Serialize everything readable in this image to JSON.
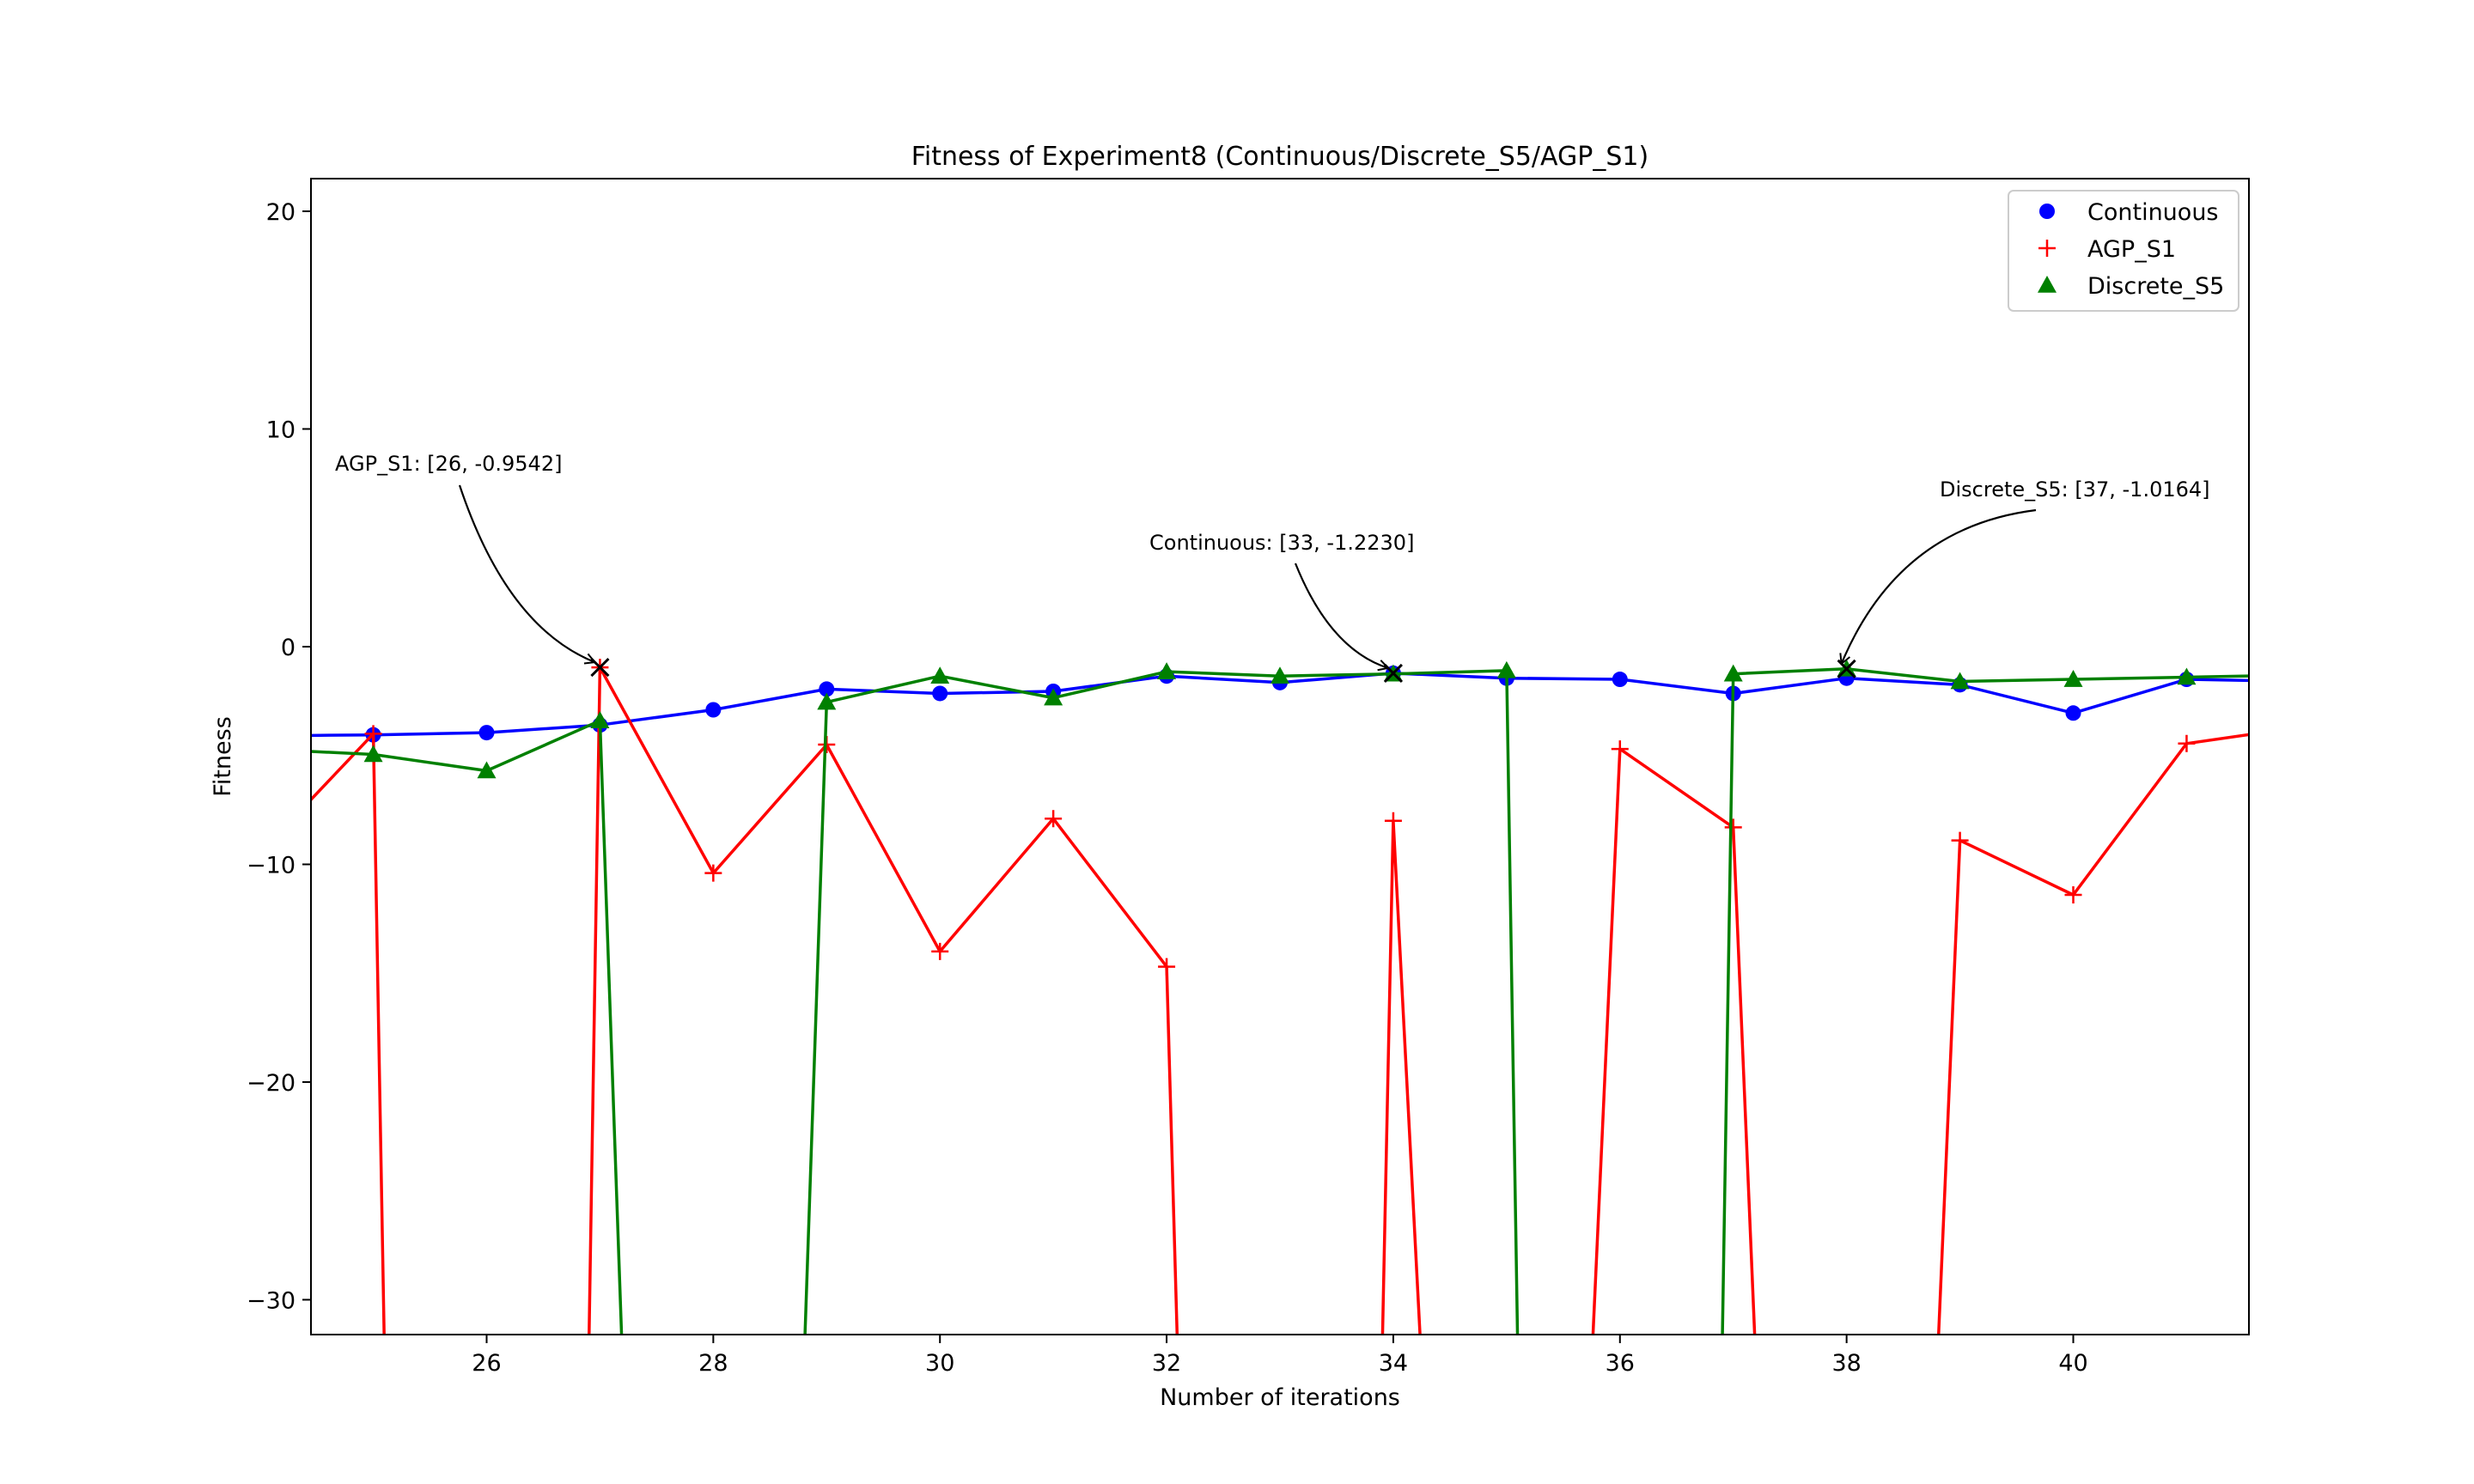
{
  "chart_data": {
    "type": "line",
    "title": "Fitness of Experiment8 (Continuous/Discrete_S5/AGP_S1)",
    "xlabel": "Number of iterations",
    "ylabel": "Fitness",
    "xlim": [
      24.45,
      41.55
    ],
    "ylim": [
      -31.6,
      21.5
    ],
    "xticks": [
      26,
      28,
      30,
      32,
      34,
      36,
      38,
      40
    ],
    "yticks": [
      20,
      10,
      0,
      -10,
      -20,
      -30
    ],
    "legend_position": "top-right",
    "grid": false,
    "series": [
      {
        "name": "Continuous",
        "color": "#0000ff",
        "marker": "circle",
        "x": [
          24,
          25,
          26,
          27,
          28,
          29,
          30,
          31,
          32,
          33,
          34,
          35,
          36,
          37,
          38,
          39,
          40,
          41,
          42
        ],
        "y": [
          -4.1,
          -4.05,
          -3.95,
          -3.6,
          -2.9,
          -1.95,
          -2.15,
          -2.05,
          -1.35,
          -1.65,
          -1.22,
          -1.45,
          -1.5,
          -2.15,
          -1.45,
          -1.75,
          -3.05,
          -1.5,
          -1.6
        ]
      },
      {
        "name": "AGP_S1",
        "color": "#ff0000",
        "marker": "plus",
        "x": [
          24,
          25,
          25.1,
          26.9,
          27,
          28,
          29,
          30,
          31,
          32,
          32.1,
          33.9,
          34,
          34.25,
          35.75,
          36,
          37,
          37.2,
          38.8,
          39,
          40,
          41,
          42
        ],
        "y": [
          -9.5,
          -4.0,
          -33,
          -33,
          -0.95,
          -10.4,
          -4.5,
          -14.0,
          -7.9,
          -14.7,
          -33,
          -33,
          -8.0,
          -33,
          -33,
          -4.7,
          -8.3,
          -33,
          -33,
          -8.9,
          -11.4,
          -4.45,
          -3.7
        ]
      },
      {
        "name": "Discrete_S5",
        "color": "#008000",
        "marker": "triangle",
        "x": [
          24,
          25,
          26,
          27,
          27.2,
          28.8,
          29,
          30,
          31,
          32,
          33,
          34,
          35,
          35.1,
          36.9,
          37,
          38,
          39,
          40,
          41,
          42
        ],
        "y": [
          -4.7,
          -4.95,
          -5.7,
          -3.4,
          -33,
          -33,
          -2.55,
          -1.35,
          -2.35,
          -1.15,
          -1.35,
          -1.25,
          -1.1,
          -33,
          -33,
          -1.25,
          -1.02,
          -1.6,
          -1.5,
          -1.4,
          -1.3
        ]
      }
    ],
    "annotations": [
      {
        "text": "AGP_S1: [26, -0.9542]",
        "target_x": 27,
        "target_y": -0.95
      },
      {
        "text": "Continuous: [33, -1.2230]",
        "target_x": 34,
        "target_y": -1.22
      },
      {
        "text": "Discrete_S5: [37, -1.0164]",
        "target_x": 38,
        "target_y": -1.02
      }
    ]
  }
}
